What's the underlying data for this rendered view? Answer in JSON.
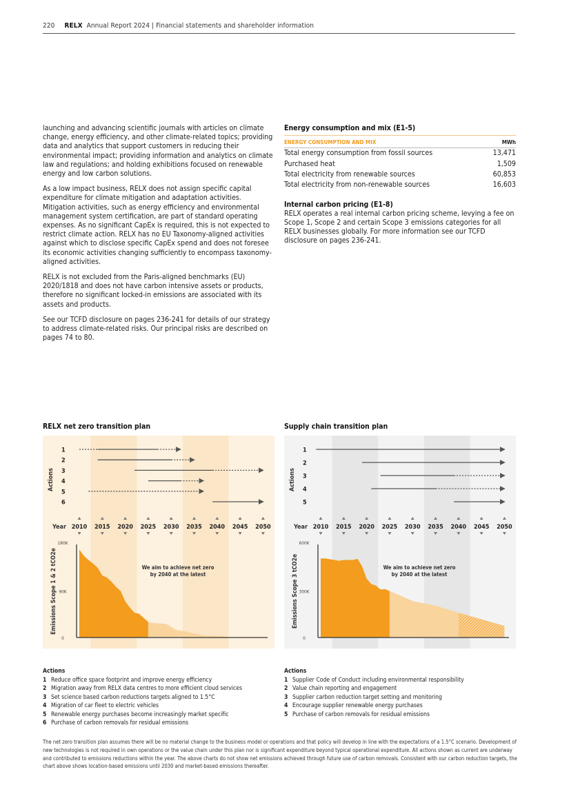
{
  "header": {
    "page": "220",
    "brand": "RELX",
    "title": "Annual Report 2024 | Financial statements and shareholder information"
  },
  "left_column": {
    "paragraphs": [
      "launching and advancing scientific journals with articles on climate change, energy efficiency, and other climate-related topics; providing data and analytics that support customers in reducing their environmental impact; providing information and analytics on climate law and regulations; and holding exhibitions focused on renewable energy and low carbon solutions.",
      "As a low impact business, RELX does not assign specific capital expenditure for climate mitigation and adaptation activities. Mitigation activities, such as energy efficiency and environmental management system certification, are part of standard operating expenses. As no significant CapEx is required, this is not expected to restrict climate action. RELX has no EU Taxonomy-aligned activities against which to disclose specific CapEx spend and does not foresee its economic activities changing sufficiently to encompass taxonomy-aligned activities.",
      "RELX is not excluded from the Paris-aligned benchmarks (EU) 2020/1818 and does not have carbon intensive assets or products, therefore no significant locked-in emissions are associated with its assets and products.",
      "See our TCFD disclosure on pages 236-241 for details of our strategy to address climate-related risks. Our principal risks are described on pages 74 to 80."
    ]
  },
  "energy": {
    "title": "Energy consumption and mix (E1-5)",
    "col_label": "ENERGY CONSUMPTION AND MIX",
    "col_unit": "MWh",
    "rows": [
      {
        "label": "Total energy consumption from fossil sources",
        "value": "13,471"
      },
      {
        "label": "Purchased heat",
        "value": "1,509"
      },
      {
        "label": "Total electricity from renewable sources",
        "value": "60,853"
      },
      {
        "label": "Total electricity from non-renewable sources",
        "value": "16,603"
      }
    ]
  },
  "carbon_pricing": {
    "title": "Internal carbon pricing (E1-8)",
    "text": "RELX operates a real internal carbon pricing scheme, levying a fee on Scope 1, Scope 2 and certain Scope 3 emissions categories for all RELX businesses globally. For more information see our TCFD disclosure on pages 236-241."
  },
  "chart_data": [
    {
      "type": "area",
      "title": "RELX net zero transition plan",
      "actions_label": "Actions",
      "year_label": "Year",
      "years": [
        2010,
        2015,
        2020,
        2025,
        2030,
        2035,
        2040,
        2045,
        2050
      ],
      "ylabel": "Emissions Scope 1 & 2 tCO2e",
      "yticks": [
        "0",
        "90K",
        "180K"
      ],
      "ylim": [
        0,
        180000
      ],
      "annotation": "We aim to achieve net zero|by 2040 at the latest",
      "colors": {
        "bg": "#fdf1df",
        "band": "#fbe6c8",
        "actual": "#f39c1e",
        "projected": "#f9d49d"
      },
      "actions": [
        {
          "id": "1",
          "segments": [
            [
              2010,
              2014,
              "dotted"
            ],
            [
              2014,
              2027,
              "solid"
            ],
            [
              2027,
              2032,
              "dotted"
            ]
          ]
        },
        {
          "id": "2",
          "segments": [
            [
              2014,
              2030,
              "solid"
            ],
            [
              2030,
              2035,
              "dotted"
            ]
          ]
        },
        {
          "id": "3",
          "segments": [
            [
              2022,
              2039,
              "solid"
            ],
            [
              2039,
              2050,
              "dotted"
            ]
          ]
        },
        {
          "id": "4",
          "segments": [
            [
              2025,
              2032,
              "solid"
            ],
            [
              2032,
              2037,
              "dotted"
            ]
          ]
        },
        {
          "id": "5",
          "segments": [
            [
              2012,
              2037,
              "dotted"
            ]
          ]
        },
        {
          "id": "6",
          "segments": [
            [
              2039,
              2050,
              "solid"
            ]
          ]
        }
      ],
      "actual": [
        [
          2010,
          170000
        ],
        [
          2011,
          158000
        ],
        [
          2012,
          150000
        ],
        [
          2013,
          143000
        ],
        [
          2014,
          135000
        ],
        [
          2015,
          120000
        ],
        [
          2016,
          116000
        ],
        [
          2017,
          108000
        ],
        [
          2018,
          98000
        ],
        [
          2019,
          90000
        ],
        [
          2020,
          70000
        ],
        [
          2021,
          58000
        ],
        [
          2022,
          48000
        ],
        [
          2023,
          46000
        ],
        [
          2024,
          38000
        ],
        [
          2025,
          30000
        ]
      ],
      "projected": [
        [
          2025,
          30000
        ],
        [
          2026,
          28000
        ],
        [
          2028,
          27000
        ],
        [
          2029,
          26000
        ],
        [
          2031,
          15000
        ],
        [
          2033,
          12000
        ],
        [
          2035,
          8000
        ],
        [
          2037,
          4000
        ],
        [
          2040,
          3000
        ],
        [
          2042,
          2000
        ],
        [
          2043,
          0
        ]
      ],
      "hatched": []
    },
    {
      "type": "area",
      "title": "Supply chain transition plan",
      "actions_label": "Actions",
      "year_label": "Year",
      "years": [
        2010,
        2015,
        2020,
        2025,
        2030,
        2035,
        2040,
        2045,
        2050
      ],
      "ylabel": "Emissions Scope 3 tCO2e",
      "yticks": [
        "0",
        "300K",
        "600K"
      ],
      "ylim": [
        0,
        600000
      ],
      "annotation": "We aim to achieve net zero|by 2040 at the latest",
      "colors": {
        "bg": "#f3f3f3",
        "band": "#e5e6e5",
        "actual": "#f39c1e",
        "projected": "#f9d49d"
      },
      "actions": [
        {
          "id": "1",
          "segments": [
            [
              2009,
              2050,
              "solid"
            ]
          ]
        },
        {
          "id": "2",
          "segments": [
            [
              2019,
              2050,
              "solid"
            ]
          ]
        },
        {
          "id": "3",
          "segments": [
            [
              2023,
              2039,
              "solid"
            ],
            [
              2039,
              2050,
              "dotted"
            ]
          ]
        },
        {
          "id": "4",
          "segments": [
            [
              2021,
              2035,
              "solid"
            ],
            [
              2035,
              2050,
              "dotted"
            ]
          ]
        },
        {
          "id": "5",
          "segments": [
            [
              2039,
              2050,
              "solid"
            ]
          ]
        }
      ],
      "actual": [
        [
          2010,
          510000
        ],
        [
          2011,
          510000
        ],
        [
          2012,
          505000
        ],
        [
          2014,
          495000
        ],
        [
          2015,
          500000
        ],
        [
          2017,
          500000
        ],
        [
          2018,
          508000
        ],
        [
          2019,
          460000
        ],
        [
          2020,
          380000
        ],
        [
          2021,
          345000
        ],
        [
          2022,
          335000
        ],
        [
          2023,
          310000
        ],
        [
          2024,
          312000
        ],
        [
          2025,
          300000
        ]
      ],
      "projected": [
        [
          2025,
          300000
        ],
        [
          2028,
          262000
        ],
        [
          2030,
          235000
        ],
        [
          2035,
          205000
        ],
        [
          2040,
          160000
        ]
      ],
      "hatched": [
        [
          2040,
          160000
        ],
        [
          2045,
          118000
        ],
        [
          2050,
          75000
        ]
      ]
    }
  ],
  "legend_left": {
    "title": "Actions",
    "items": [
      {
        "n": "1",
        "t": "Reduce office space footprint and improve energy efficiency"
      },
      {
        "n": "2",
        "t": "Migration away from RELX data centres to more efficient cloud services"
      },
      {
        "n": "3",
        "t": "Set science based carbon reductions targets aligned to 1.5°C"
      },
      {
        "n": "4",
        "t": "Migration of car fleet to electric vehicles"
      },
      {
        "n": "5",
        "t": "Renewable energy purchases become increasingly market specific"
      },
      {
        "n": "6",
        "t": "Purchase of carbon removals for residual emissions"
      }
    ]
  },
  "legend_right": {
    "title": "Actions",
    "items": [
      {
        "n": "1",
        "t": "Supplier Code of Conduct including environmental responsibility"
      },
      {
        "n": "2",
        "t": "Value chain reporting and engagement"
      },
      {
        "n": "3",
        "t": "Supplier carbon reduction target setting and monitoring"
      },
      {
        "n": "4",
        "t": "Encourage supplier renewable energy purchases"
      },
      {
        "n": "5",
        "t": "Purchase of carbon removals for residual emissions"
      }
    ]
  },
  "footnote": "The net zero transition plan assumes there will be no material change to the business model or operations and that policy will develop in line with the expectations of a 1.5°C scenario. Development of new technologies is not required in own operations or the value chain under this plan nor is significant expenditure beyond typical operational expenditure. All actions shown as current are underway and contributed to emissions reductions within the year. The above charts do not show net emissions achieved through future use of carbon removals. Consistent with our carbon reduction targets, the chart above shows location-based emissions until 2030 and market-based emissions thereafter."
}
